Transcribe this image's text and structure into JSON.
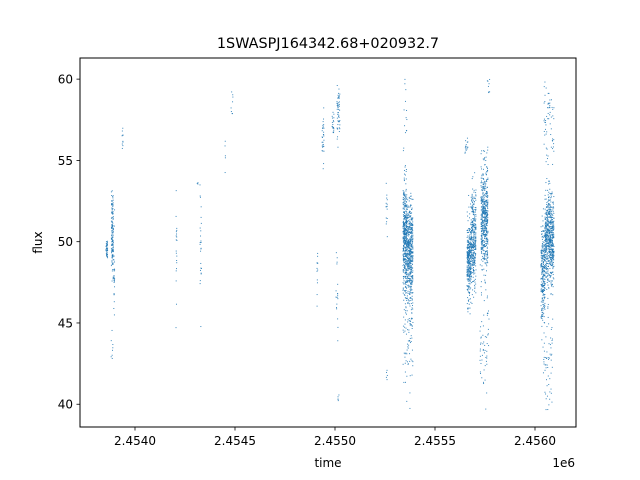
{
  "chart_data": {
    "type": "scatter",
    "title": "1SWASPJ164342.68+020932.7",
    "xlabel": "time",
    "ylabel": "flux",
    "x_offset_label": "1e6",
    "xlim": [
      2453725,
      2456205
    ],
    "ylim": [
      38.6,
      61.3
    ],
    "x_ticks": [
      2.454,
      2.4545,
      2.455,
      2.4555,
      2.456
    ],
    "x_tick_labels": [
      "2.4540",
      "2.4545",
      "2.4550",
      "2.4555",
      "2.4560"
    ],
    "y_ticks": [
      40,
      45,
      50,
      55,
      60
    ],
    "y_tick_labels": [
      "40",
      "45",
      "50",
      "55",
      "60"
    ],
    "grid": false,
    "marker_color": "#1f77b4",
    "series": [
      {
        "clusters": [
          {
            "x": [
              2453855,
              2453863
            ],
            "y_center": 49.6,
            "y_spread": 0.6,
            "n": 40
          },
          {
            "x": [
              2453882,
              2453892
            ],
            "y_center": 50.5,
            "y_spread": 2.2,
            "n": 140
          },
          {
            "x": [
              2453894,
              2453898
            ],
            "y_center": 48.0,
            "y_spread": 2.5,
            "n": 25
          },
          {
            "x": [
              2453880,
              2453890
            ],
            "y_center": 43.5,
            "y_spread": 1.0,
            "n": 8
          },
          {
            "x": [
              2453935,
              2453940
            ],
            "y_center": 56.5,
            "y_spread": 0.8,
            "n": 10
          },
          {
            "x": [
              2454205,
              2454210
            ],
            "y_center": 49.5,
            "y_spread": 2.5,
            "n": 20
          },
          {
            "x": [
              2454310,
              2454315
            ],
            "y_center": 53.8,
            "y_spread": 0.3,
            "n": 3
          },
          {
            "x": [
              2454325,
              2454333
            ],
            "y_center": 49.0,
            "y_spread": 3.0,
            "n": 25
          },
          {
            "x": [
              2454450,
              2454455
            ],
            "y_center": 55.3,
            "y_spread": 1.5,
            "n": 5
          },
          {
            "x": [
              2454480,
              2454490
            ],
            "y_center": 58.5,
            "y_spread": 1.2,
            "n": 8
          },
          {
            "x": [
              2454910,
              2454915
            ],
            "y_center": 47.8,
            "y_spread": 2.0,
            "n": 12
          },
          {
            "x": [
              2454935,
              2454945
            ],
            "y_center": 56.4,
            "y_spread": 1.2,
            "n": 30
          },
          {
            "x": [
              2454985,
              2454995
            ],
            "y_center": 57.2,
            "y_spread": 0.8,
            "n": 20
          },
          {
            "x": [
              2455010,
              2455025
            ],
            "y_center": 57.8,
            "y_spread": 1.5,
            "n": 50
          },
          {
            "x": [
              2455005,
              2455015
            ],
            "y_center": 46.5,
            "y_spread": 2.2,
            "n": 18
          },
          {
            "x": [
              2455015,
              2455022
            ],
            "y_center": 40.2,
            "y_spread": 0.5,
            "n": 5
          },
          {
            "x": [
              2455255,
              2455262
            ],
            "y_center": 52.0,
            "y_spread": 1.2,
            "n": 15
          },
          {
            "x": [
              2455255,
              2455262
            ],
            "y_center": 41.6,
            "y_spread": 0.4,
            "n": 5
          },
          {
            "x": [
              2455340,
              2455360
            ],
            "y_center": 50.2,
            "y_spread": 3.2,
            "n": 420
          },
          {
            "x": [
              2455360,
              2455390
            ],
            "y_center": 49.3,
            "y_spread": 2.8,
            "n": 480
          },
          {
            "x": [
              2455340,
              2455390
            ],
            "y_center": 44.0,
            "y_spread": 3.5,
            "n": 90
          },
          {
            "x": [
              2455345,
              2455360
            ],
            "y_center": 58.5,
            "y_spread": 1.5,
            "n": 12
          },
          {
            "x": [
              2455650,
              2455665
            ],
            "y_center": 55.8,
            "y_spread": 0.6,
            "n": 15
          },
          {
            "x": [
              2455660,
              2455680
            ],
            "y_center": 48.8,
            "y_spread": 2.2,
            "n": 300
          },
          {
            "x": [
              2455680,
              2455705
            ],
            "y_center": 50.0,
            "y_spread": 2.6,
            "n": 330
          },
          {
            "x": [
              2455730,
              2455765
            ],
            "y_center": 51.5,
            "y_spread": 3.0,
            "n": 520
          },
          {
            "x": [
              2455725,
              2455770
            ],
            "y_center": 44.0,
            "y_spread": 2.8,
            "n": 60
          },
          {
            "x": [
              2455760,
              2455775
            ],
            "y_center": 59.5,
            "y_spread": 0.6,
            "n": 8
          },
          {
            "x": [
              2456030,
              2456050
            ],
            "y_center": 48.0,
            "y_spread": 2.6,
            "n": 250
          },
          {
            "x": [
              2456050,
              2456095
            ],
            "y_center": 50.2,
            "y_spread": 2.6,
            "n": 650
          },
          {
            "x": [
              2456045,
              2456095
            ],
            "y_center": 57.5,
            "y_spread": 2.2,
            "n": 60
          },
          {
            "x": [
              2456040,
              2456090
            ],
            "y_center": 42.5,
            "y_spread": 2.8,
            "n": 60
          }
        ]
      }
    ]
  }
}
